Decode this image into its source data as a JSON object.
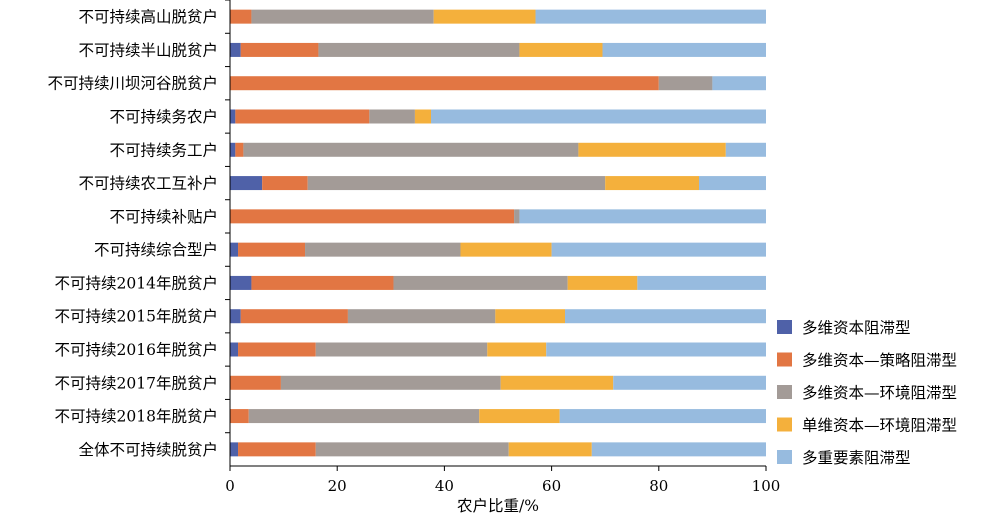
{
  "chart_data": {
    "type": "bar",
    "orientation": "horizontal",
    "stacked": true,
    "categories": [
      "不可持续高山脱贫户",
      "不可持续半山脱贫户",
      "不可持续川坝河谷脱贫户",
      "不可持续务农户",
      "不可持续务工户",
      "不可持续农工互补户",
      "不可持续补贴户",
      "不可持续综合型户",
      "不可持续2014年脱贫户",
      "不可持续2015年脱贫户",
      "不可持续2016年脱贫户",
      "不可持续2017年脱贫户",
      "不可持续2018年脱贫户",
      "全体不可持续脱贫户"
    ],
    "series": [
      {
        "name": "多维资本阻滞型",
        "color": "#4f61a8",
        "values": [
          0,
          2,
          0,
          1,
          1,
          6,
          0,
          1.5,
          4,
          2,
          1.5,
          0,
          0,
          1.5
        ]
      },
      {
        "name": "多维资本—策略阻滞型",
        "color": "#e27643",
        "values": [
          4,
          14.5,
          80,
          25,
          1.5,
          8.5,
          53,
          12.5,
          26.5,
          20,
          14.5,
          9.5,
          3.5,
          14.5
        ]
      },
      {
        "name": "多维资本—环境阻滞型",
        "color": "#a39b97",
        "values": [
          34,
          37.5,
          10,
          8.5,
          62.5,
          55.5,
          1,
          29,
          32.5,
          27.5,
          32,
          41,
          43,
          36
        ]
      },
      {
        "name": "单维资本—环境阻滞型",
        "color": "#f4b03c",
        "values": [
          19,
          15.5,
          0,
          3,
          27.5,
          17.5,
          0,
          17,
          13,
          13,
          11,
          21,
          15,
          15.5
        ]
      },
      {
        "name": "多重要素阻滞型",
        "color": "#97bbdf",
        "values": [
          43,
          30.5,
          10,
          62.5,
          7.5,
          12.5,
          46,
          40,
          24,
          37.5,
          41,
          28.5,
          38.5,
          32.5
        ]
      }
    ],
    "xlabel": "农户比重/%",
    "ylabel": "",
    "xlim": [
      0,
      100
    ],
    "xticks": [
      0,
      20,
      40,
      60,
      80,
      100
    ],
    "grid": false,
    "legend_position": "right"
  }
}
